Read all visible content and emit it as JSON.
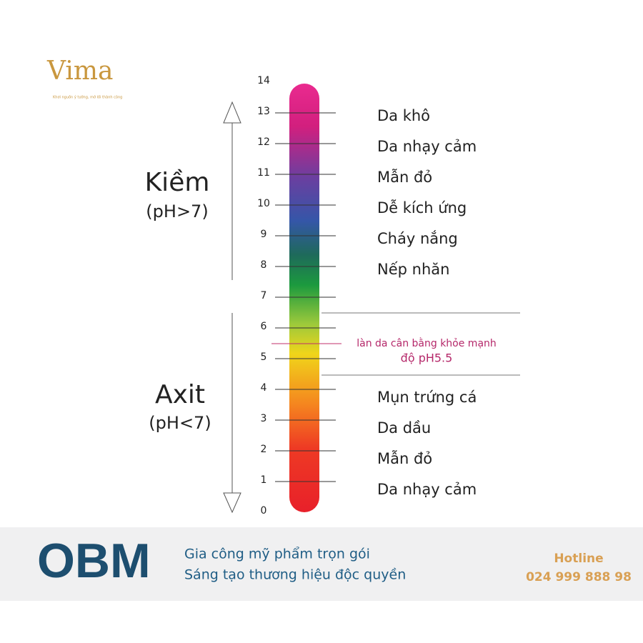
{
  "logo": {
    "name": "Vima",
    "tagline": "Khơi nguồn ý tưởng, mở lối thành công"
  },
  "scale": {
    "ticks": [
      0,
      1,
      2,
      3,
      4,
      5,
      6,
      7,
      8,
      9,
      10,
      11,
      12,
      13,
      14
    ]
  },
  "alkaline": {
    "label": "Kiềm",
    "note": "(pH>7)",
    "effects": [
      "Da khô",
      "Da nhạy cảm",
      "Mẫn đỏ",
      "Dễ kích ứng",
      "Cháy nắng",
      "Nếp nhăn"
    ]
  },
  "balanced": {
    "line1": "làn da cân bằng khỏe mạnh",
    "line2": "độ pH5.5"
  },
  "acid": {
    "label": "Axit",
    "note": "(pH<7)",
    "effects": [
      "Mụn trứng cá",
      "Da dầu",
      "Mẫn đỏ",
      "Da nhạy cảm"
    ]
  },
  "footer": {
    "brand": "OBM",
    "slogan1": "Gia công mỹ phẩm trọn gói",
    "slogan2": "Sáng tạo thương hiệu độc quyền",
    "hotline_label": "Hotline",
    "hotline_number": "024 999 888 98"
  }
}
